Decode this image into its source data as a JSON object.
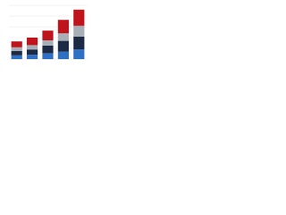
{
  "chart_data": {
    "type": "stacked_bar",
    "categories": [
      null,
      null,
      null,
      null,
      null
    ],
    "series": [
      {
        "color": "#2f6fc4",
        "values": [
          7,
          8,
          11,
          14,
          18
        ]
      },
      {
        "color": "#1c2a44",
        "values": [
          8,
          10,
          14,
          20,
          24
        ]
      },
      {
        "color": "#a9afb6",
        "values": [
          7,
          8,
          10,
          14,
          20
        ]
      },
      {
        "color": "#c0141c",
        "values": [
          11,
          14,
          18,
          25,
          30
        ]
      }
    ],
    "ylim": [
      0,
      100
    ],
    "yticks": [
      0,
      20,
      40,
      60,
      80,
      100
    ],
    "grid": true
  }
}
